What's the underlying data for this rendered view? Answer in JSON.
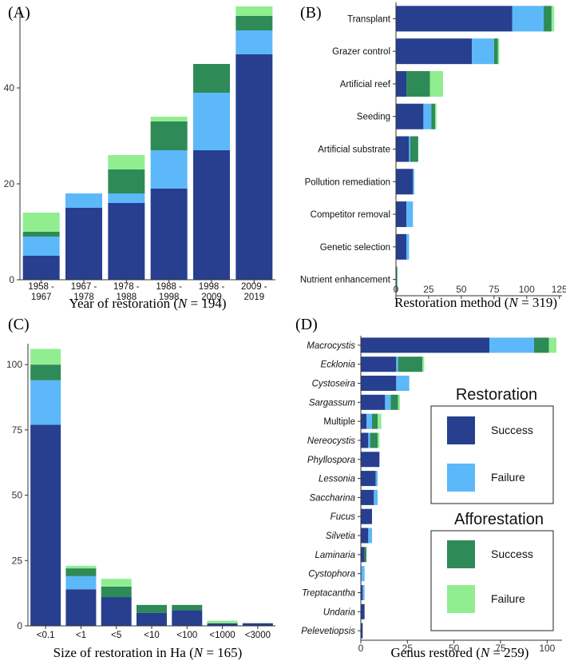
{
  "colors": {
    "restoration_success": "#273F8E",
    "restoration_failure": "#5CB8F9",
    "afforestation_success": "#2E8B57",
    "afforestation_failure": "#90EE90"
  },
  "legend": {
    "restoration_title": "Restoration",
    "afforestation_title": "Afforestation",
    "success_label": "Success",
    "failure_label": "Failure"
  },
  "chart_data": [
    {
      "panel": "(A)",
      "type": "bar",
      "stacked": true,
      "orientation": "vertical",
      "xlabel_text": "Year of restoration",
      "xlabel_n": "194",
      "categories": [
        "1958 -\n1967",
        "1967 -\n1978",
        "1978 -\n1988",
        "1988 -\n1998",
        "1998 -\n2009",
        "2009 -\n2019"
      ],
      "series": [
        {
          "name": "Restoration Success",
          "values": [
            5,
            15,
            16,
            19,
            27,
            47
          ]
        },
        {
          "name": "Restoration Failure",
          "values": [
            4,
            3,
            2,
            8,
            12,
            5
          ]
        },
        {
          "name": "Afforestation Success",
          "values": [
            1,
            0,
            5,
            6,
            6,
            3
          ]
        },
        {
          "name": "Afforestation Failure",
          "values": [
            4,
            0,
            3,
            1,
            0,
            2
          ]
        }
      ],
      "ylim": [
        0,
        57
      ],
      "yticks": [
        0,
        20,
        40
      ]
    },
    {
      "panel": "(B)",
      "type": "bar",
      "stacked": true,
      "orientation": "horizontal",
      "xlabel_text": "Restoration method",
      "xlabel_n": "319",
      "categories": [
        "Transplant",
        "Grazer control",
        "Artificial reef",
        "Seeding",
        "Artificial substrate",
        "Pollution remediation",
        "Competitor removal",
        "Genetic selection",
        "Nutrient enhancement"
      ],
      "series": [
        {
          "name": "Restoration Success",
          "values": [
            89,
            58,
            8,
            21,
            10,
            13,
            8,
            8,
            0
          ]
        },
        {
          "name": "Restoration Failure",
          "values": [
            24,
            17,
            0,
            6,
            1,
            1,
            5,
            2,
            0
          ]
        },
        {
          "name": "Afforestation Success",
          "values": [
            6,
            3,
            18,
            3,
            6,
            0,
            0,
            0,
            1
          ]
        },
        {
          "name": "Afforestation Failure",
          "values": [
            2,
            1,
            10,
            1,
            0,
            0,
            0,
            0,
            0
          ]
        }
      ],
      "xlim": [
        0,
        127
      ],
      "xticks": [
        0,
        25,
        50,
        75,
        100,
        125
      ]
    },
    {
      "panel": "(C)",
      "type": "bar",
      "stacked": true,
      "orientation": "vertical",
      "xlabel_text": "Size of restoration in Ha",
      "xlabel_n": "165",
      "categories": [
        "<0.1",
        "<1",
        "<5",
        "<10",
        "<100",
        "<1000",
        "<3000"
      ],
      "series": [
        {
          "name": "Restoration Success",
          "values": [
            77,
            14,
            11,
            5,
            6,
            1,
            1
          ]
        },
        {
          "name": "Restoration Failure",
          "values": [
            17,
            5,
            0,
            0,
            0,
            0,
            0
          ]
        },
        {
          "name": "Afforestation Success",
          "values": [
            6,
            3,
            4,
            3,
            2,
            0,
            0
          ]
        },
        {
          "name": "Afforestation Failure",
          "values": [
            6,
            1,
            3,
            0,
            0,
            1,
            0
          ]
        }
      ],
      "ylim": [
        0,
        108
      ],
      "yticks": [
        0,
        25,
        50,
        75,
        100
      ]
    },
    {
      "panel": "(D)",
      "type": "bar",
      "stacked": true,
      "orientation": "horizontal",
      "xlabel_text": "Genus restored",
      "xlabel_n": "259",
      "categories": [
        "Macrocystis",
        "Ecklonia",
        "Cystoseira",
        "Sargassum",
        "Multiple",
        "Nereocystis",
        "Phyllospora",
        "Lessonia",
        "Saccharina",
        "Fucus",
        "Silvetia",
        "Laminaria",
        "Cystophora",
        "Treptacantha",
        "Undaria",
        "Pelevetiopsis"
      ],
      "italic": [
        true,
        true,
        true,
        true,
        false,
        true,
        true,
        true,
        true,
        true,
        true,
        true,
        true,
        true,
        true,
        true
      ],
      "series": [
        {
          "name": "Restoration Success",
          "values": [
            69,
            19,
            19,
            13,
            3,
            4,
            10,
            8,
            7,
            6,
            4,
            2,
            0,
            1,
            2,
            1
          ]
        },
        {
          "name": "Restoration Failure",
          "values": [
            24,
            1,
            7,
            3,
            3,
            1,
            0,
            1,
            2,
            0,
            2,
            0,
            2,
            1,
            0,
            0
          ]
        },
        {
          "name": "Afforestation Success",
          "values": [
            8,
            13,
            0,
            4,
            3,
            4,
            0,
            0,
            0,
            0,
            0,
            1,
            0,
            0,
            0,
            0
          ]
        },
        {
          "name": "Afforestation Failure",
          "values": [
            4,
            1,
            0,
            1,
            2,
            1,
            0,
            0,
            0,
            0,
            0,
            0,
            0,
            0,
            0,
            0
          ]
        }
      ],
      "xlim": [
        0,
        108
      ],
      "xticks": [
        0,
        25,
        50,
        75,
        100
      ]
    }
  ]
}
